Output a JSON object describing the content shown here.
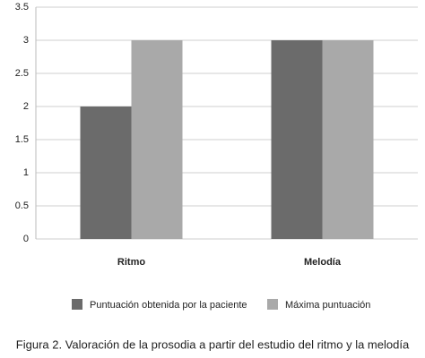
{
  "chart_data": {
    "type": "bar",
    "categories": [
      "Ritmo",
      "Melodía"
    ],
    "series": [
      {
        "name": "Puntuación obtenida por la paciente",
        "color": "#6b6b6b",
        "values": [
          2,
          3
        ]
      },
      {
        "name": "Máxima puntuación",
        "color": "#a9a9a9",
        "values": [
          3,
          3
        ]
      }
    ],
    "ylim": [
      0,
      3.5
    ],
    "yticks": [
      0,
      0.5,
      1,
      1.5,
      2,
      2.5,
      3,
      3.5
    ],
    "grid": true,
    "legend": "bottom",
    "caption": "Figura 2. Valoración de la prosodia a partir del estudio del ritmo y la melodía"
  }
}
